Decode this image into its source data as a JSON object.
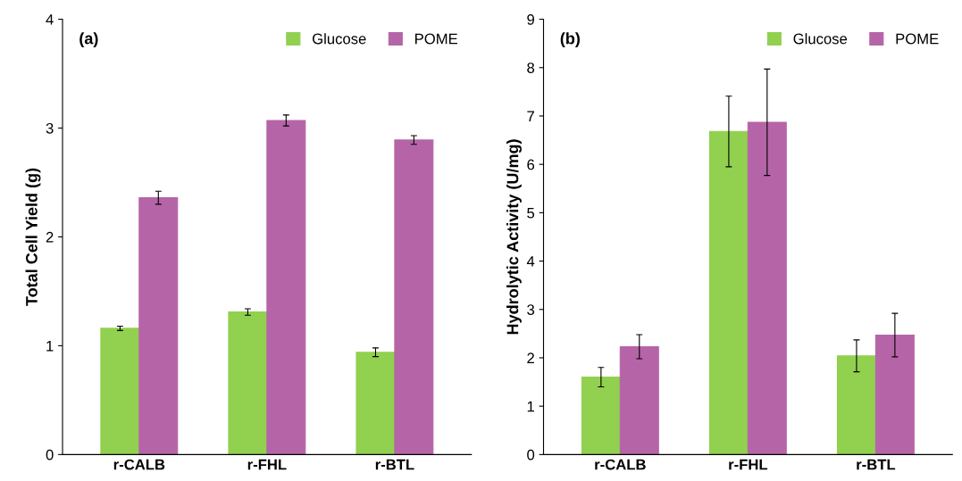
{
  "chart_data": [
    {
      "type": "bar",
      "ylabel": "Total Cell Yield (g)",
      "annotations": [
        "(a)"
      ],
      "categories": [
        "r-CALB",
        "r-FHL",
        "r-BTL"
      ],
      "series": [
        {
          "name": "Glucose",
          "color": "#92d050",
          "values": [
            1.16,
            1.31,
            0.94
          ],
          "errors": [
            0.02,
            0.03,
            0.04
          ]
        },
        {
          "name": "POME",
          "color": "#b565a7",
          "values": [
            2.36,
            3.07,
            2.89
          ],
          "errors": [
            0.06,
            0.05,
            0.04
          ]
        }
      ],
      "ylim": [
        0,
        4
      ],
      "yticks": [
        0,
        1,
        2,
        3,
        4
      ],
      "grid": false,
      "legend": "top right"
    },
    {
      "type": "bar",
      "ylabel": "Hydrolytic Activity (U/mg)",
      "annotations": [
        "(b)"
      ],
      "categories": [
        "r-CALB",
        "r-FHL",
        "r-BTL"
      ],
      "series": [
        {
          "name": "Glucose",
          "color": "#92d050",
          "values": [
            1.6,
            6.68,
            2.04
          ],
          "errors": [
            0.2,
            0.73,
            0.33
          ]
        },
        {
          "name": "POME",
          "color": "#b565a7",
          "values": [
            2.23,
            6.87,
            2.47
          ],
          "errors": [
            0.25,
            1.1,
            0.45
          ]
        }
      ],
      "ylim": [
        0,
        9
      ],
      "yticks": [
        0,
        1,
        2,
        3,
        4,
        5,
        6,
        7,
        8,
        9
      ],
      "grid": false,
      "legend": "top right"
    }
  ]
}
